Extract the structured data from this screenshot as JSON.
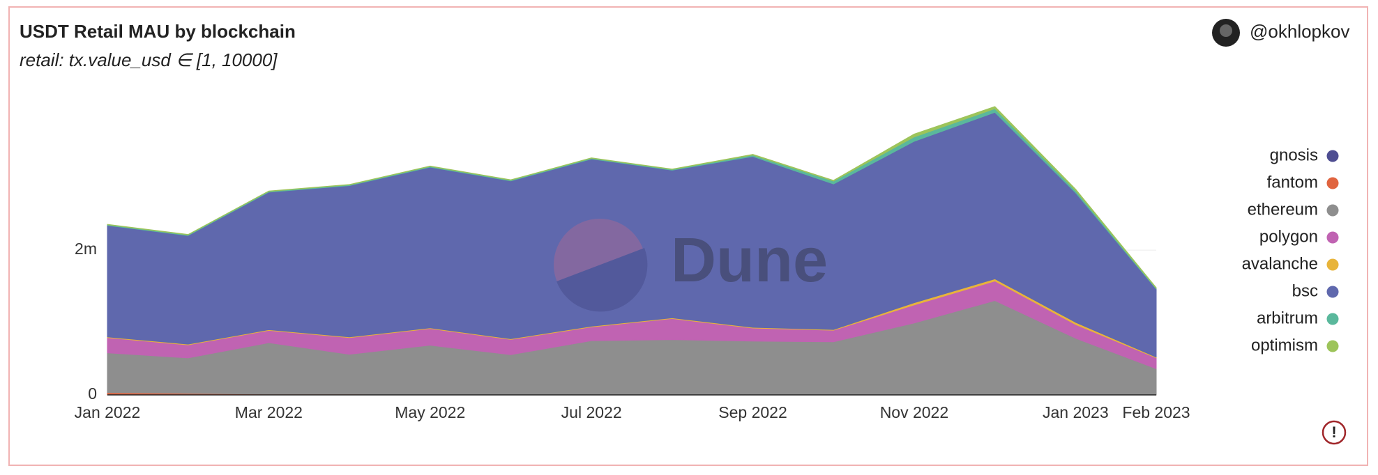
{
  "chart_data": {
    "type": "stacked_area",
    "title": "USDT Retail MAU by blockchain",
    "subtitle": "retail: tx.value_usd ∈ [1, 10000]",
    "author": "@okhlopkov",
    "watermark": "Dune",
    "categories": [
      "Jan 2022",
      null,
      "Mar 2022",
      null,
      "May 2022",
      null,
      "Jul 2022",
      null,
      "Sep 2022",
      null,
      "Nov 2022",
      null,
      "Jan 2023",
      "Feb 2023"
    ],
    "series": [
      {
        "name": "gnosis",
        "color": "#4e4d91",
        "values": [
          1000,
          1000,
          1000,
          1000,
          1000,
          1000,
          1000,
          1000,
          1000,
          1000,
          1000,
          1000,
          1000,
          1000
        ]
      },
      {
        "name": "fantom",
        "color": "#e0643f",
        "values": [
          30000,
          20000,
          10000,
          10000,
          5000,
          5000,
          3000,
          3000,
          2000,
          2000,
          2000,
          2000,
          2000,
          1000
        ]
      },
      {
        "name": "ethereum",
        "color": "#8e8e8e",
        "values": [
          550000,
          490000,
          710000,
          550000,
          680000,
          550000,
          745000,
          760000,
          740000,
          730000,
          990000,
          1300000,
          780000,
          360000
        ]
      },
      {
        "name": "polygon",
        "color": "#c063b2",
        "values": [
          210000,
          180000,
          170000,
          230000,
          230000,
          210000,
          190000,
          290000,
          180000,
          160000,
          250000,
          270000,
          190000,
          150000
        ]
      },
      {
        "name": "avalanche",
        "color": "#e8b43a",
        "values": [
          10000,
          10000,
          10000,
          10000,
          10000,
          10000,
          10000,
          10000,
          10000,
          10000,
          30000,
          30000,
          30000,
          10000
        ]
      },
      {
        "name": "bsc",
        "color": "#5f68ad",
        "values": [
          1540000,
          1500000,
          1900000,
          2090000,
          2220000,
          2180000,
          2310000,
          2040000,
          2360000,
          2010000,
          2230000,
          2300000,
          1790000,
          940000
        ]
      },
      {
        "name": "arbitrum",
        "color": "#5ab89c",
        "values": [
          10000,
          10000,
          10000,
          10000,
          10000,
          10000,
          10000,
          10000,
          20000,
          40000,
          60000,
          50000,
          30000,
          10000
        ]
      },
      {
        "name": "optimism",
        "color": "#9dc45a",
        "values": [
          5000,
          5000,
          5000,
          5000,
          5000,
          5000,
          5000,
          5000,
          10000,
          10000,
          40000,
          30000,
          20000,
          10000
        ]
      }
    ],
    "ylim": [
      0,
      4300000
    ],
    "yticks": [
      0,
      {
        "value": 2000000,
        "label": "2m"
      }
    ],
    "grid": true
  }
}
